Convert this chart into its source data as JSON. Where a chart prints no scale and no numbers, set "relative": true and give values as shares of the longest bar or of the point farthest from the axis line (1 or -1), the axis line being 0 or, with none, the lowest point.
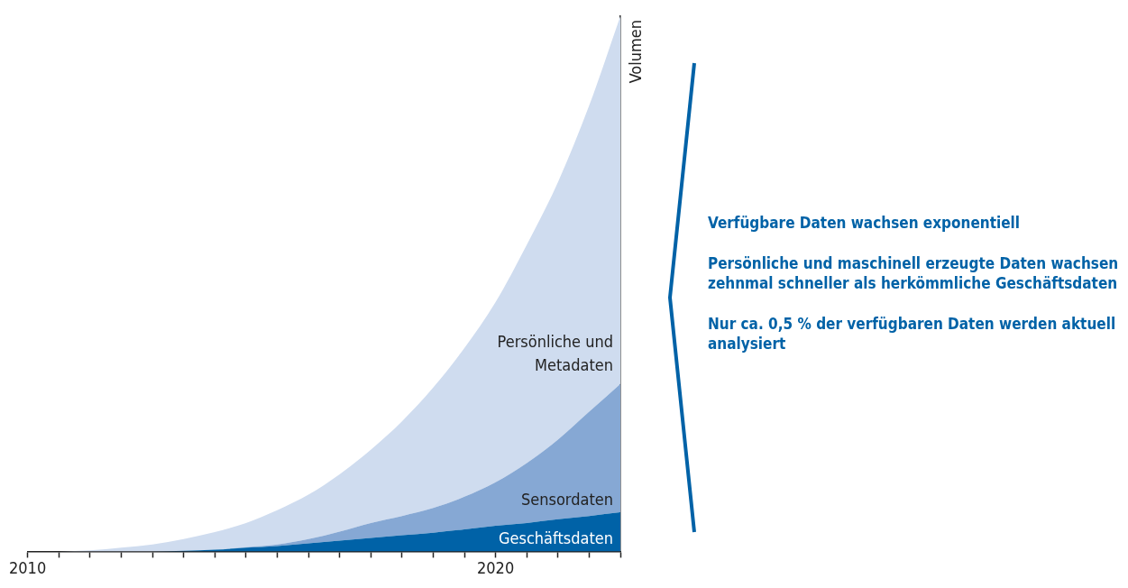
{
  "chart_data": {
    "type": "area",
    "stacked": true,
    "relative": true,
    "ylabel": "Volumen",
    "categories": [
      "2010",
      null,
      null,
      null,
      null,
      null,
      null,
      null,
      null,
      null,
      null,
      null,
      null,
      null,
      null,
      "2020",
      null,
      null,
      null,
      null
    ],
    "series": [
      {
        "name": "Geschäftsdaten",
        "color": "#0062a7",
        "values": [
          0,
          0,
          0,
          0,
          0,
          0.001,
          0.003,
          0.007,
          0.01,
          0.015,
          0.02,
          0.025,
          0.03,
          0.035,
          0.041,
          0.048,
          0.053,
          0.06,
          0.066,
          0.073
        ]
      },
      {
        "name": "Sensordaten",
        "color": "#86a8d4",
        "values": [
          0,
          0,
          0,
          0,
          0,
          0,
          0,
          0.001,
          0.003,
          0.008,
          0.017,
          0.028,
          0.036,
          0.046,
          0.061,
          0.081,
          0.112,
          0.149,
          0.195,
          0.24
        ]
      },
      {
        "name": "Persönliche und Metadaten",
        "color": "#cfdcef",
        "values": [
          0,
          0,
          0.002,
          0.007,
          0.013,
          0.022,
          0.033,
          0.045,
          0.064,
          0.083,
          0.107,
          0.137,
          0.177,
          0.225,
          0.278,
          0.337,
          0.408,
          0.481,
          0.572,
          0.687
        ]
      }
    ],
    "annotations": [
      "Verfügbare Daten wachsen exponentiell",
      "Persönliche und maschinell erzeugte Daten wachsen zehnmal schneller als herkömmliche Geschäftsdaten",
      "Nur ca. 0,5 % der verfügbaren Daten werden aktuell analysiert"
    ]
  }
}
